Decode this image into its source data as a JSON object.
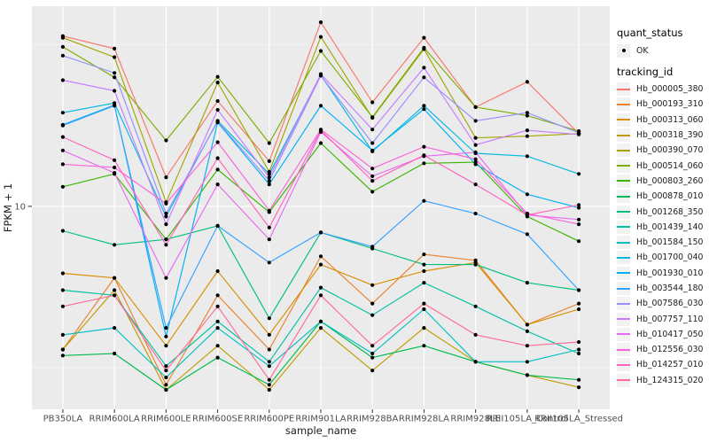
{
  "figure": {
    "background": "#FFFFFF",
    "panel_bg": "#EBEBEB",
    "grid_color": "#FFFFFF",
    "point_color": "#000000",
    "tick_color": "#333333",
    "axis_text_color": "#4D4D4D"
  },
  "chart_data": {
    "type": "line",
    "title": "",
    "xlabel": "sample_name",
    "ylabel": "FPKM + 1",
    "y_scale": "log10",
    "ylim": [
      2.35,
      41.7
    ],
    "y_ticks": [
      {
        "label": "10",
        "value": 10
      }
    ],
    "grid": true,
    "legend_position": "right",
    "categories": [
      "PB350LA",
      "RRIM600LA",
      "RRIM600LE",
      "RRIM600SE",
      "RRIM600PE",
      "RRIM901LA",
      "RRIM928BA",
      "RRIM928LA",
      "RRIM928LE",
      "RRII105LA_Control",
      "RRII105LA_Stressed"
    ],
    "legend": {
      "quant_status_title": "quant_status",
      "quant_status_items": [
        {
          "label": "OK",
          "marker": "point"
        }
      ],
      "tracking_id_title": "tracking_id"
    },
    "series": [
      {
        "name": "Hb_000005_380",
        "color": "#F8766D",
        "values": [
          33.7,
          30.8,
          12.3,
          21.2,
          13.8,
          37.2,
          21.0,
          33.3,
          20.3,
          24.3,
          16.8
        ]
      },
      {
        "name": "Hb_000193_310",
        "color": "#EA8331",
        "values": [
          3.6,
          6.0,
          2.8,
          5.3,
          3.6,
          7.0,
          5.0,
          7.1,
          6.8,
          4.3,
          5.0
        ]
      },
      {
        "name": "Hb_000313_060",
        "color": "#D89000",
        "values": [
          6.2,
          6.0,
          3.7,
          6.3,
          4.0,
          6.6,
          5.7,
          6.3,
          6.7,
          4.3,
          4.8
        ]
      },
      {
        "name": "Hb_000318_390",
        "color": "#C09B00",
        "values": [
          3.6,
          5.5,
          2.7,
          3.7,
          2.7,
          4.2,
          3.1,
          4.2,
          3.3,
          3.0,
          2.75
        ]
      },
      {
        "name": "Hb_000390_070",
        "color": "#A3A500",
        "values": [
          33.3,
          29.0,
          10.3,
          24.2,
          12.8,
          33.5,
          18.8,
          30.7,
          16.3,
          16.5,
          16.8
        ]
      },
      {
        "name": "Hb_000514_060",
        "color": "#7CAE00",
        "values": [
          31.2,
          25.1,
          16.0,
          25.2,
          15.7,
          30.3,
          18.9,
          31.0,
          20.3,
          19.1,
          17.1
        ]
      },
      {
        "name": "Hb_000803_260",
        "color": "#39B600",
        "values": [
          11.5,
          12.6,
          7.9,
          13.0,
          9.6,
          15.7,
          11.1,
          13.6,
          13.7,
          9.3,
          7.8
        ]
      },
      {
        "name": "Hb_000878_010",
        "color": "#00BB4E",
        "values": [
          3.45,
          3.5,
          2.7,
          3.4,
          2.8,
          4.4,
          3.4,
          3.7,
          3.3,
          3.0,
          2.9
        ]
      },
      {
        "name": "Hb_001268_350",
        "color": "#00BF7D",
        "values": [
          8.4,
          7.6,
          7.9,
          8.7,
          4.5,
          8.3,
          7.4,
          6.6,
          6.6,
          5.8,
          5.5
        ]
      },
      {
        "name": "Hb_001439_140",
        "color": "#00C1A3",
        "values": [
          5.5,
          5.3,
          3.2,
          4.4,
          3.3,
          5.6,
          4.6,
          5.8,
          4.9,
          4.1,
          3.5
        ]
      },
      {
        "name": "Hb_001584_150",
        "color": "#00BFC4",
        "values": [
          4.0,
          4.2,
          2.95,
          4.2,
          3.2,
          4.4,
          3.5,
          4.8,
          3.3,
          3.3,
          3.6
        ]
      },
      {
        "name": "Hb_001700_040",
        "color": "#00BAE0",
        "values": [
          19.5,
          20.9,
          9.3,
          18.4,
          12.6,
          25.5,
          14.8,
          20.5,
          14.6,
          14.3,
          12.6
        ]
      },
      {
        "name": "Hb_001930_010",
        "color": "#00B0F6",
        "values": [
          17.9,
          20.6,
          3.95,
          18.2,
          11.7,
          20.5,
          14.9,
          20.0,
          13.5,
          10.9,
          9.9
        ]
      },
      {
        "name": "Hb_003544_180",
        "color": "#35A2FF",
        "values": [
          17.8,
          20.5,
          4.2,
          8.7,
          6.7,
          8.3,
          7.5,
          10.4,
          9.5,
          8.2,
          5.5
        ]
      },
      {
        "name": "Hb_007586_030",
        "color": "#9590FF",
        "values": [
          29.3,
          25.9,
          9.5,
          18.3,
          12.0,
          25.4,
          15.7,
          25.1,
          18.4,
          19.5,
          16.9
        ]
      },
      {
        "name": "Hb_007757_110",
        "color": "#C77CFF",
        "values": [
          24.6,
          22.8,
          8.8,
          19.9,
          12.3,
          25.7,
          17.3,
          26.9,
          15.5,
          17.2,
          16.7
        ]
      },
      {
        "name": "Hb_010417_050",
        "color": "#E76BF3",
        "values": [
          14.9,
          12.7,
          6.0,
          11.7,
          7.9,
          17.0,
          12.4,
          14.3,
          14.7,
          9.4,
          9.1
        ]
      },
      {
        "name": "Hb_012556_030",
        "color": "#FA62DB",
        "values": [
          13.5,
          13.2,
          10.2,
          15.8,
          9.7,
          17.3,
          13.1,
          15.3,
          14.0,
          9.5,
          8.8
        ]
      },
      {
        "name": "Hb_014257_010",
        "color": "#FF62BC",
        "values": [
          16.4,
          13.9,
          7.6,
          14.1,
          8.6,
          17.2,
          12.0,
          14.4,
          11.7,
          9.4,
          10.1
        ]
      },
      {
        "name": "Hb_124315_020",
        "color": "#FF6A98",
        "values": [
          4.9,
          5.3,
          3.1,
          4.9,
          2.9,
          5.3,
          3.7,
          5.0,
          4.0,
          3.7,
          3.8
        ]
      }
    ]
  }
}
